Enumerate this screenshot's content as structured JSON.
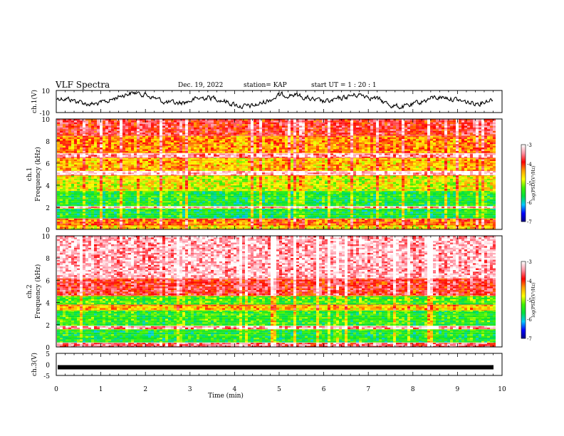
{
  "header": {
    "title": "VLF Spectra",
    "date": "Dec. 19, 2022",
    "station": "station= KAP",
    "start": "start  UT =   1 : 20 : 1"
  },
  "chart_data": [
    {
      "type": "line",
      "ylabel": "ch.1(V)",
      "ylim": [
        -10,
        10
      ],
      "yticks": [
        "10",
        "-10"
      ],
      "xlim": [
        0,
        10
      ],
      "description_free": true,
      "waveform_level_approx": 1.5
    },
    {
      "type": "heatmap",
      "ylabel": "ch.1\nFrequency (kHz)",
      "ylabel_lines": [
        "ch.1",
        "Frequency  (kHz)"
      ],
      "ylim": [
        0,
        10
      ],
      "yticks": [
        0,
        2,
        4,
        6,
        8,
        10
      ],
      "xlim": [
        0,
        10
      ],
      "colorbar": {
        "label": "log(PSD)(V²/Hz)",
        "range": [
          -7,
          -3
        ],
        "ticks": [
          "-3",
          "-4",
          "-5",
          "-6",
          "-7"
        ]
      },
      "bands_khz": [
        {
          "from": 0.0,
          "to": 0.4,
          "level": -4.6
        },
        {
          "from": 0.4,
          "to": 1.0,
          "level": -4.2
        },
        {
          "from": 1.0,
          "to": 1.9,
          "level": -5.6
        },
        {
          "from": 1.9,
          "to": 2.1,
          "level": -3.4
        },
        {
          "from": 2.1,
          "to": 3.5,
          "level": -5.5
        },
        {
          "from": 3.5,
          "to": 4.9,
          "level": -4.8
        },
        {
          "from": 4.9,
          "to": 5.3,
          "level": -3.2
        },
        {
          "from": 5.3,
          "to": 6.5,
          "level": -4.5
        },
        {
          "from": 6.5,
          "to": 6.9,
          "level": -3.4
        },
        {
          "from": 6.9,
          "to": 8.5,
          "level": -4.3
        },
        {
          "from": 8.5,
          "to": 10.0,
          "level": -3.8
        }
      ]
    },
    {
      "type": "heatmap",
      "ylabel": "ch.2\nFrequency (kHz)",
      "ylabel_lines": [
        "ch.2",
        "Frequency  (kHz)"
      ],
      "ylim": [
        0,
        10
      ],
      "yticks": [
        0,
        2,
        4,
        6,
        8,
        10
      ],
      "xlim": [
        0,
        10
      ],
      "colorbar": {
        "label": "log(PSD)(V²/Hz)",
        "range": [
          -7,
          -3
        ],
        "ticks": [
          "-3",
          "-4",
          "-5",
          "-6",
          "-7"
        ]
      },
      "bands_khz": [
        {
          "from": 0.0,
          "to": 0.4,
          "level": -3.6
        },
        {
          "from": 0.4,
          "to": 1.6,
          "level": -5.5
        },
        {
          "from": 1.6,
          "to": 1.9,
          "level": -3.4
        },
        {
          "from": 1.9,
          "to": 3.3,
          "level": -5.4
        },
        {
          "from": 3.3,
          "to": 3.8,
          "level": -4.5
        },
        {
          "from": 3.8,
          "to": 4.6,
          "level": -5.3
        },
        {
          "from": 4.6,
          "to": 6.2,
          "level": -3.8
        },
        {
          "from": 6.2,
          "to": 10.0,
          "level": -3.3
        }
      ]
    },
    {
      "type": "line",
      "ylabel": "ch.3(V)",
      "ylim": [
        -5,
        5
      ],
      "yticks": [
        "5",
        "0",
        "-5"
      ],
      "xlim": [
        0,
        10
      ],
      "waveform_level_approx": 0
    }
  ],
  "x_axis": {
    "label": "Time  (min)",
    "ticks": [
      "0",
      "1",
      "2",
      "3",
      "4",
      "5",
      "6",
      "7",
      "8",
      "9",
      "10"
    ]
  },
  "colors": {
    "colormap": [
      "#000080",
      "#0000ff",
      "#00c8ff",
      "#00e040",
      "#40f000",
      "#ffff00",
      "#ffa000",
      "#ff0000",
      "#ff90a0",
      "#ffffff"
    ]
  }
}
